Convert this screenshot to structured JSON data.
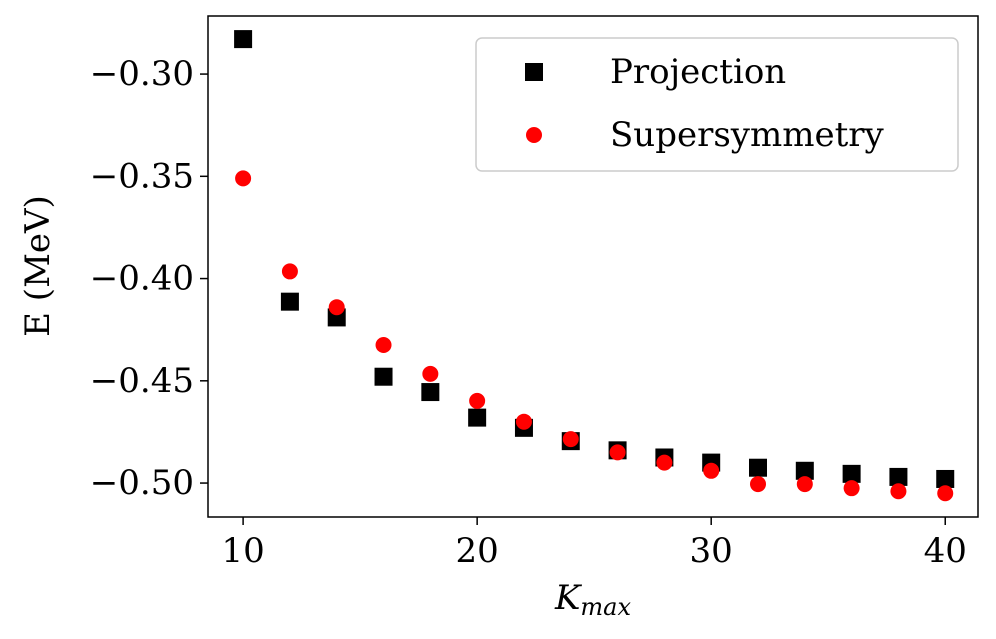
{
  "chart_data": {
    "type": "scatter",
    "xlabel": {
      "base": "K",
      "sub": "max"
    },
    "ylabel": "E (MeV)",
    "xlim": [
      8.5,
      41.4
    ],
    "xticks": [
      10,
      20,
      30,
      40
    ],
    "ylim": [
      -0.5166,
      -0.2716
    ],
    "yticks": [
      {
        "value": -0.3,
        "label": "−0.30"
      },
      {
        "value": -0.35,
        "label": "−0.35"
      },
      {
        "value": -0.4,
        "label": "−0.40"
      },
      {
        "value": -0.45,
        "label": "−0.45"
      },
      {
        "value": -0.5,
        "label": "−0.50"
      }
    ],
    "legend": "upper right",
    "series": [
      {
        "name": "Projection",
        "color": "#000000",
        "marker": "square",
        "x": [
          10,
          12,
          14,
          16,
          18,
          20,
          22,
          24,
          26,
          28,
          30,
          32,
          34,
          36,
          38,
          40
        ],
        "values": [
          -0.2829,
          -0.4113,
          -0.419,
          -0.448,
          -0.4555,
          -0.468,
          -0.473,
          -0.4795,
          -0.484,
          -0.4875,
          -0.49,
          -0.4925,
          -0.494,
          -0.4955,
          -0.497,
          -0.498
        ]
      },
      {
        "name": "Supersymmetry",
        "color": "#ff0000",
        "marker": "circle",
        "x": [
          10,
          12,
          14,
          16,
          18,
          20,
          22,
          24,
          26,
          28,
          30,
          32,
          34,
          36,
          38,
          40
        ],
        "values": [
          -0.351,
          -0.3965,
          -0.414,
          -0.4325,
          -0.4466,
          -0.4598,
          -0.47,
          -0.4785,
          -0.485,
          -0.49,
          -0.494,
          -0.5005,
          -0.5005,
          -0.5025,
          -0.504,
          -0.505
        ]
      }
    ]
  }
}
